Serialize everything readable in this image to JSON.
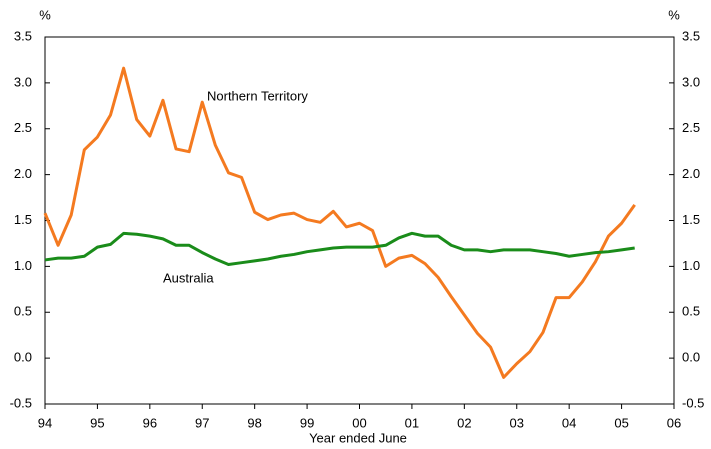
{
  "chart_data": {
    "type": "line",
    "ylabel": "%",
    "y2label": "%",
    "xlabel": "Year ended June",
    "x": [
      1994,
      1994.25,
      1994.5,
      1994.75,
      1995,
      1995.25,
      1995.5,
      1995.75,
      1996,
      1996.25,
      1996.5,
      1996.75,
      1997,
      1997.25,
      1997.5,
      1997.75,
      1998,
      1998.25,
      1998.5,
      1998.75,
      1999,
      1999.25,
      1999.5,
      1999.75,
      2000,
      2000.25,
      2000.5,
      2000.75,
      2001,
      2001.25,
      2001.5,
      2001.75,
      2002,
      2002.25,
      2002.5,
      2002.75,
      2003,
      2003.25,
      2003.5,
      2003.75,
      2004,
      2004.25,
      2004.5,
      2004.75,
      2005,
      2005.25
    ],
    "series": [
      {
        "name": "Northern Territory",
        "color": "#f47a20",
        "values": [
          1.58,
          1.23,
          1.56,
          2.27,
          2.41,
          2.65,
          3.16,
          2.6,
          2.42,
          2.81,
          2.28,
          2.25,
          2.79,
          2.32,
          2.02,
          1.97,
          1.59,
          1.51,
          1.56,
          1.58,
          1.51,
          1.48,
          1.6,
          1.43,
          1.47,
          1.39,
          1.0,
          1.09,
          1.12,
          1.03,
          0.88,
          0.67,
          0.47,
          0.27,
          0.12,
          -0.21,
          -0.06,
          0.07,
          0.28,
          0.66,
          0.66,
          0.83,
          1.05,
          1.33,
          1.47,
          1.67
        ]
      },
      {
        "name": "Australia",
        "color": "#1a8c1a",
        "values": [
          1.07,
          1.09,
          1.09,
          1.11,
          1.21,
          1.24,
          1.36,
          1.35,
          1.33,
          1.3,
          1.23,
          1.23,
          1.15,
          1.08,
          1.02,
          1.04,
          1.06,
          1.08,
          1.11,
          1.13,
          1.16,
          1.18,
          1.2,
          1.21,
          1.21,
          1.21,
          1.23,
          1.31,
          1.36,
          1.33,
          1.33,
          1.23,
          1.18,
          1.18,
          1.16,
          1.18,
          1.18,
          1.18,
          1.16,
          1.14,
          1.11,
          1.13,
          1.15,
          1.16,
          1.18,
          1.2
        ]
      }
    ],
    "xlim": [
      1994,
      2006
    ],
    "xticks": [
      {
        "value": 1994,
        "label": "94"
      },
      {
        "value": 1995,
        "label": "95"
      },
      {
        "value": 1996,
        "label": "96"
      },
      {
        "value": 1997,
        "label": "97"
      },
      {
        "value": 1998,
        "label": "98"
      },
      {
        "value": 1999,
        "label": "99"
      },
      {
        "value": 2000,
        "label": "00"
      },
      {
        "value": 2001,
        "label": "01"
      },
      {
        "value": 2002,
        "label": "02"
      },
      {
        "value": 2003,
        "label": "03"
      },
      {
        "value": 2004,
        "label": "04"
      },
      {
        "value": 2005,
        "label": "05"
      },
      {
        "value": 2006,
        "label": "06"
      }
    ],
    "ylim": [
      -0.5,
      3.5
    ],
    "yticks": [
      3.5,
      {
        "value": 3,
        "label": "3.0"
      },
      2.5,
      {
        "value": 2,
        "label": "2.0"
      },
      1.5,
      {
        "value": 1,
        "label": "1.0"
      },
      0.5,
      {
        "value": 0,
        "label": "0.0"
      },
      -0.5
    ],
    "y2lim": [
      -0.5,
      3.5
    ],
    "y2ticks": [
      3.5,
      {
        "value": 3,
        "label": "3.0"
      },
      2.5,
      {
        "value": 2,
        "label": "2.0"
      },
      1.5,
      {
        "value": 1,
        "label": "1.0"
      },
      0.5,
      {
        "value": 0,
        "label": "0.0"
      },
      -0.5
    ],
    "grid": false
  }
}
